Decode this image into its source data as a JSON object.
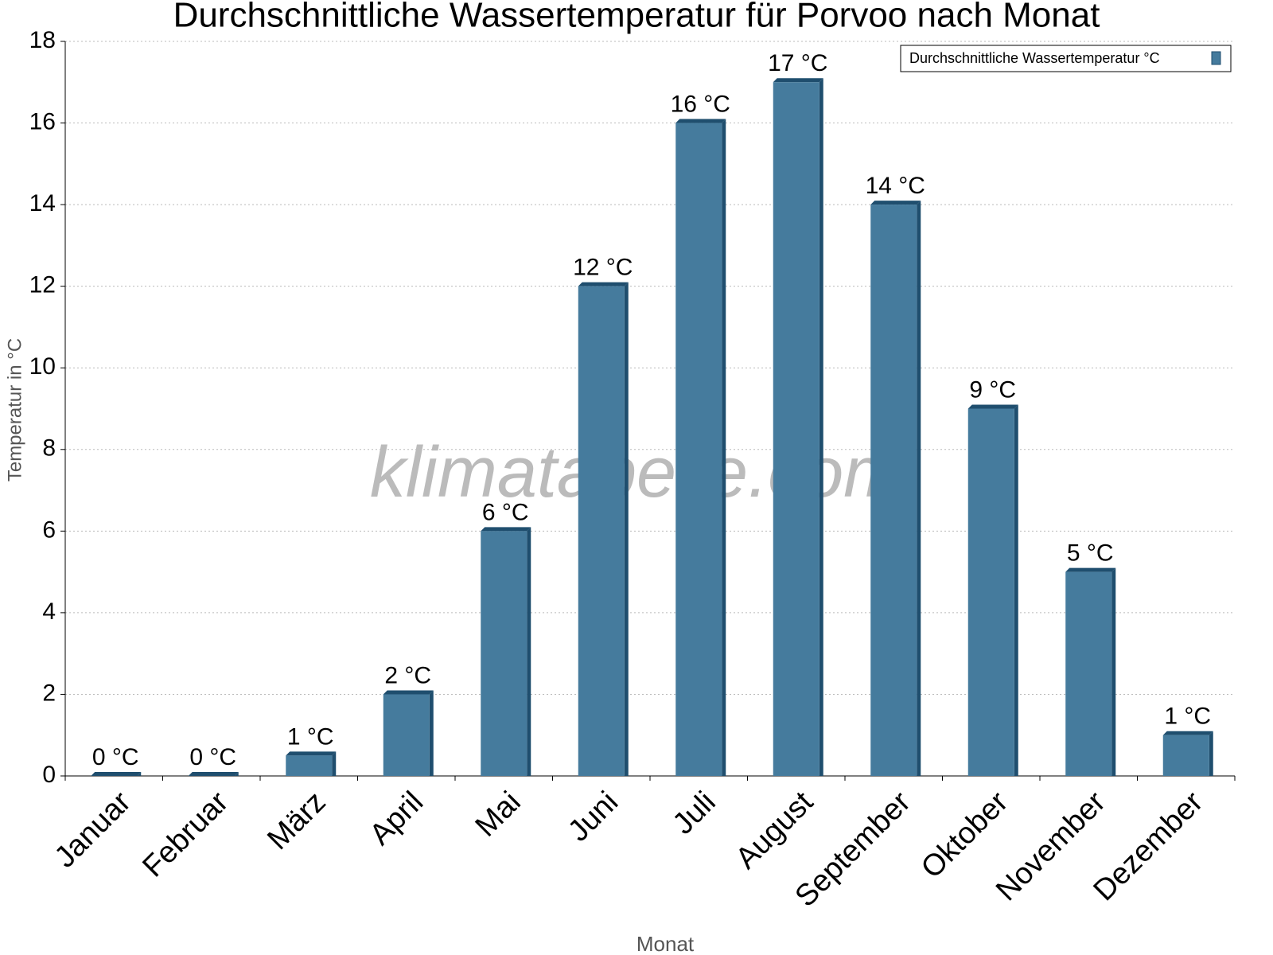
{
  "chart_data": {
    "type": "bar",
    "title": "Durchschnittliche Wassertemperatur für Porvoo nach Monat",
    "x_label": "Monat",
    "y_label": "Temperatur in °C",
    "watermark": "klimatabelle.com",
    "categories": [
      "Januar",
      "Februar",
      "März",
      "April",
      "Mai",
      "Juni",
      "Juli",
      "August",
      "September",
      "Oktober",
      "November",
      "Dezember"
    ],
    "series": [
      {
        "name": "Durchschnittliche Wassertemperatur °C",
        "color": "#457b9d",
        "values": [
          0,
          0,
          0.5,
          2,
          6,
          12,
          16,
          17,
          14,
          9,
          5,
          1
        ],
        "value_labels": [
          "0 °C",
          "0 °C",
          "1 °C",
          "2 °C",
          "6 °C",
          "12 °C",
          "16 °C",
          "17 °C",
          "14 °C",
          "9 °C",
          "5 °C",
          "1 °C"
        ]
      }
    ],
    "ylim": [
      0,
      18
    ],
    "yticks": [
      0,
      2,
      4,
      6,
      8,
      10,
      12,
      14,
      16,
      18
    ],
    "grid": true,
    "legend": "top-right"
  }
}
